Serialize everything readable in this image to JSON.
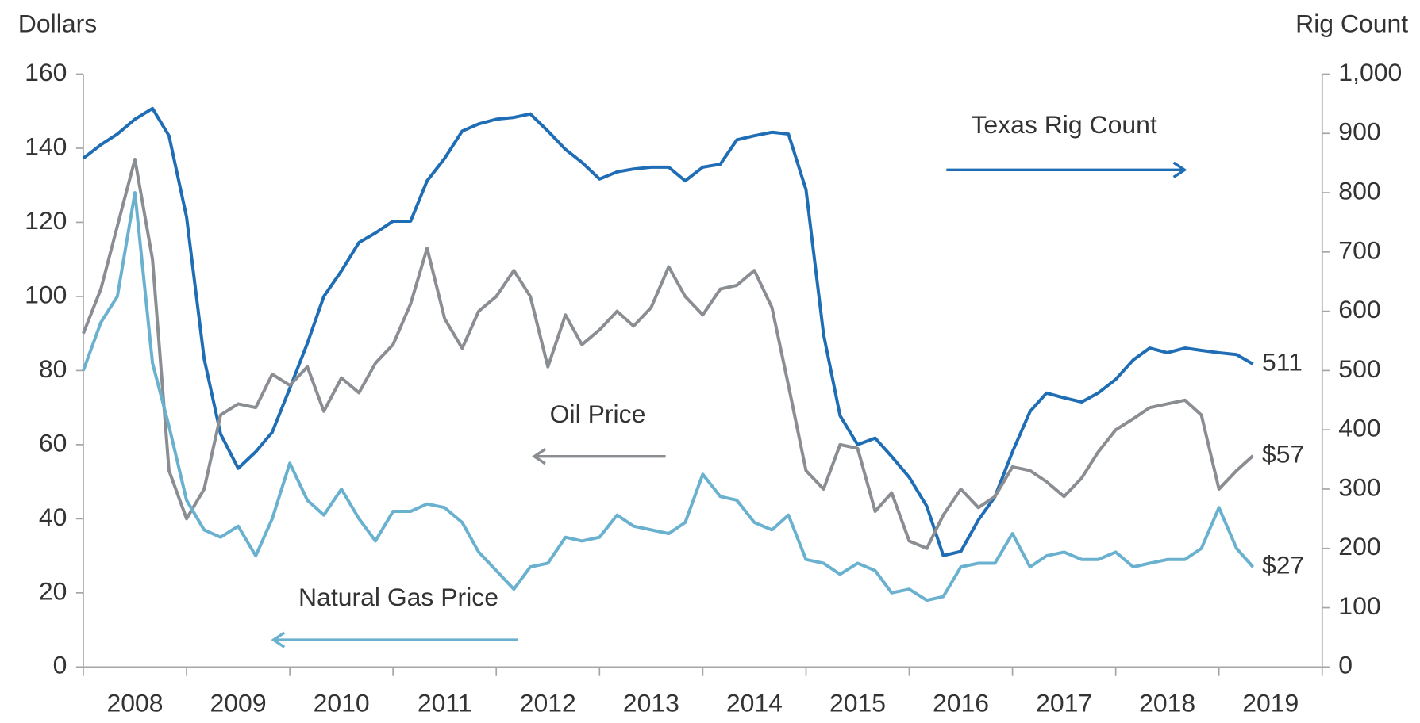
{
  "chart_data": {
    "type": "line",
    "y_axis_title": "Dollars",
    "y2_axis_title": "Rig Count",
    "x": [
      2008,
      2008.17,
      2008.33,
      2008.5,
      2008.67,
      2008.83,
      2009,
      2009.17,
      2009.33,
      2009.5,
      2009.67,
      2009.83,
      2010,
      2010.17,
      2010.33,
      2010.5,
      2010.67,
      2010.83,
      2011,
      2011.17,
      2011.33,
      2011.5,
      2011.67,
      2011.83,
      2012,
      2012.17,
      2012.33,
      2012.5,
      2012.67,
      2012.83,
      2013,
      2013.17,
      2013.33,
      2013.5,
      2013.67,
      2013.83,
      2014,
      2014.17,
      2014.33,
      2014.5,
      2014.67,
      2014.83,
      2015,
      2015.17,
      2015.33,
      2015.5,
      2015.67,
      2015.83,
      2016,
      2016.17,
      2016.33,
      2016.5,
      2016.67,
      2016.83,
      2017,
      2017.17,
      2017.33,
      2017.5,
      2017.67,
      2017.83,
      2018,
      2018.17,
      2018.33,
      2018.5,
      2018.67,
      2018.83,
      2019,
      2019.17,
      2019.33
    ],
    "xlim": [
      2008,
      2020
    ],
    "xticks": [
      {
        "value": 2008.5,
        "label": "2008"
      },
      {
        "value": 2009.5,
        "label": "2009"
      },
      {
        "value": 2010.5,
        "label": "2010"
      },
      {
        "value": 2011.5,
        "label": "2011"
      },
      {
        "value": 2012.5,
        "label": "2012"
      },
      {
        "value": 2013.5,
        "label": "2013"
      },
      {
        "value": 2014.5,
        "label": "2014"
      },
      {
        "value": 2015.5,
        "label": "2015"
      },
      {
        "value": 2016.5,
        "label": "2016"
      },
      {
        "value": 2017.5,
        "label": "2017"
      },
      {
        "value": 2018.5,
        "label": "2018"
      },
      {
        "value": 2019.5,
        "label": "2019"
      }
    ],
    "ylim": [
      0,
      160
    ],
    "yticks": [
      0,
      20,
      40,
      60,
      80,
      100,
      120,
      140,
      160
    ],
    "y2lim": [
      0,
      1000
    ],
    "y2ticks": [
      0,
      100,
      200,
      300,
      400,
      500,
      600,
      700,
      800,
      900,
      {
        "value": 1000,
        "label": "1,000"
      }
    ],
    "series": [
      {
        "name": "Texas Rig Count",
        "color": "#1f6db4",
        "axis": "y2",
        "end_label": "511",
        "values": [
          858,
          881,
          899,
          924,
          942,
          896,
          759,
          520,
          393,
          335,
          363,
          396,
          470,
          546,
          625,
          668,
          716,
          732,
          752,
          752,
          820,
          858,
          904,
          916,
          924,
          927,
          933,
          904,
          873,
          851,
          823,
          835,
          840,
          843,
          843,
          820,
          843,
          848,
          889,
          896,
          902,
          899,
          805,
          561,
          424,
          375,
          386,
          355,
          320,
          271,
          188,
          195,
          248,
          287,
          363,
          431,
          462,
          454,
          447,
          462,
          485,
          518,
          538,
          530,
          538,
          534,
          530,
          527,
          511
        ]
      },
      {
        "name": "Oil Price",
        "color": "#8a8d91",
        "end_label": "$57",
        "values": [
          90,
          102,
          119,
          137,
          110,
          53,
          40,
          48,
          68,
          71,
          70,
          79,
          76,
          81,
          69,
          78,
          74,
          82,
          87,
          98,
          113,
          94,
          86,
          96,
          100,
          107,
          100,
          81,
          95,
          87,
          91,
          96,
          92,
          97,
          108,
          100,
          95,
          102,
          103,
          107,
          97,
          76,
          53,
          48,
          60,
          59,
          42,
          47,
          34,
          32,
          41,
          48,
          43,
          46,
          54,
          53,
          50,
          46,
          51,
          58,
          64,
          67,
          70,
          71,
          72,
          68,
          48,
          53,
          57
        ]
      },
      {
        "name": "Natural Gas Price",
        "color": "#6ab1cf",
        "end_label": "$27",
        "values": [
          80,
          93,
          100,
          128,
          82,
          65,
          45,
          37,
          35,
          38,
          30,
          40,
          55,
          45,
          41,
          48,
          40,
          34,
          42,
          42,
          44,
          43,
          39,
          31,
          26,
          21,
          27,
          28,
          35,
          34,
          35,
          41,
          38,
          37,
          36,
          39,
          52,
          46,
          45,
          39,
          37,
          41,
          29,
          28,
          25,
          28,
          26,
          20,
          21,
          18,
          19,
          27,
          28,
          28,
          36,
          27,
          30,
          31,
          29,
          29,
          31,
          27,
          28,
          29,
          29,
          32,
          43,
          32,
          27
        ]
      }
    ]
  }
}
